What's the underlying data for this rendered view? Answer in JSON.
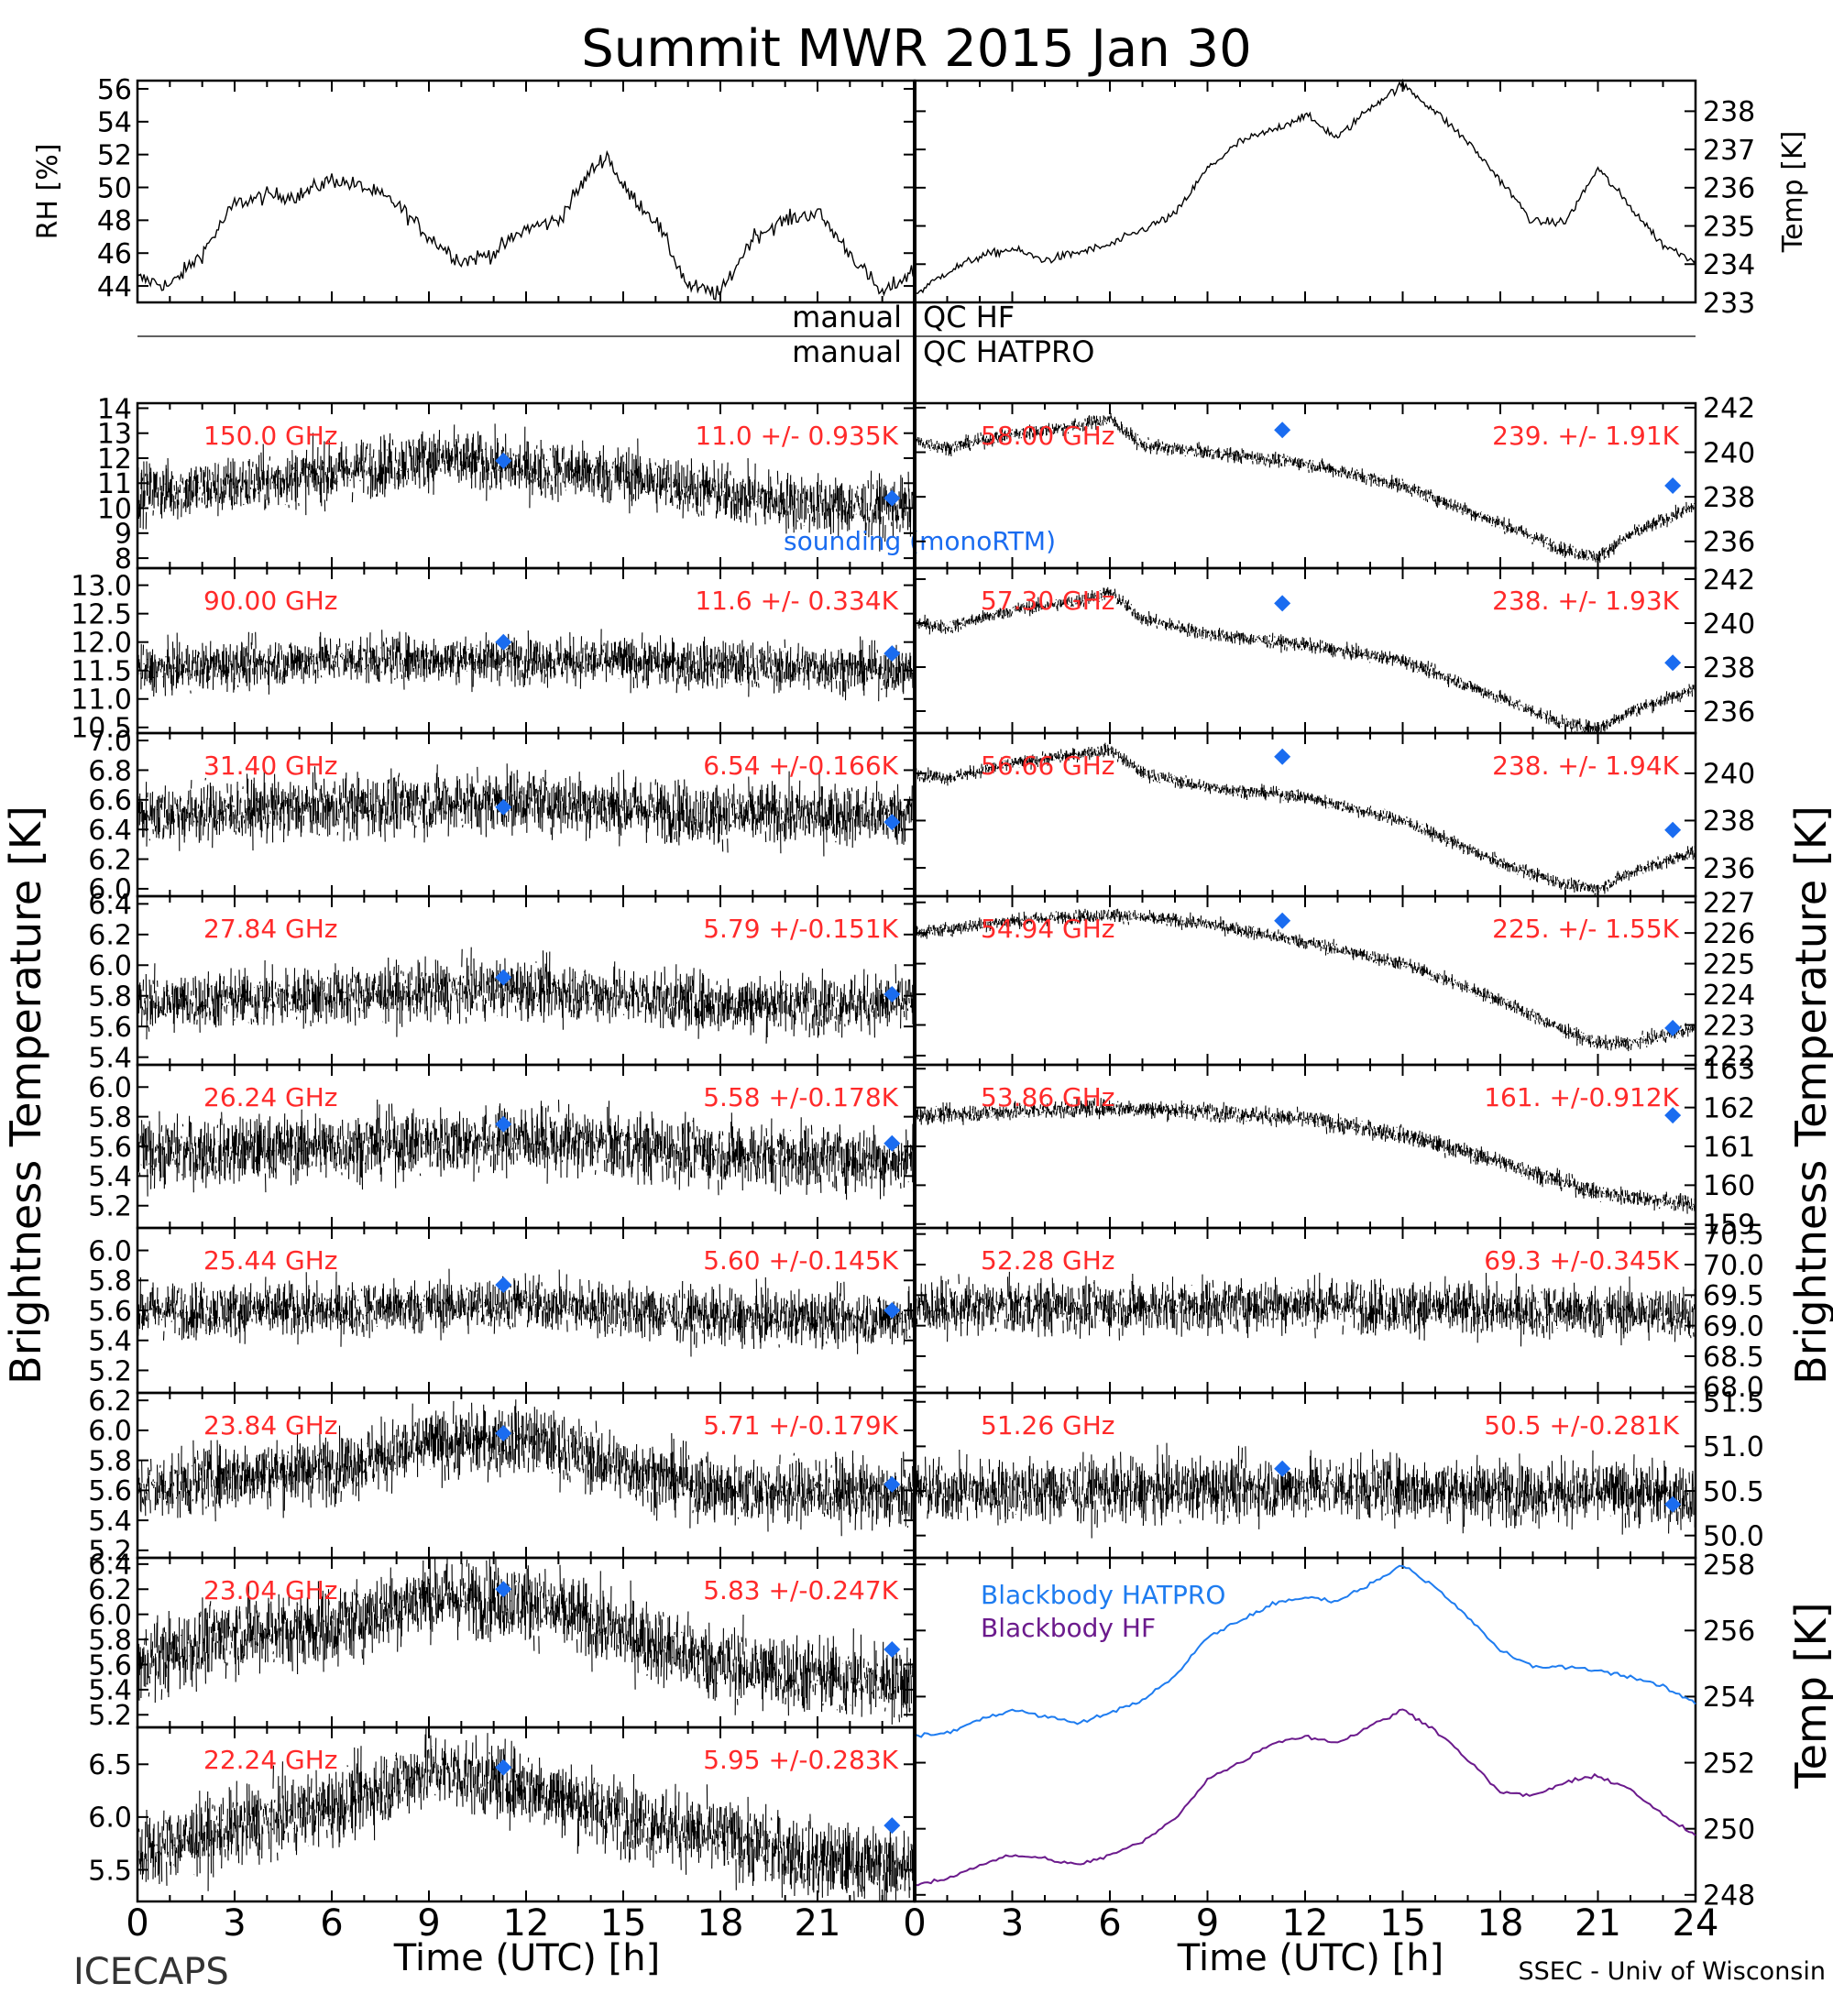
{
  "title": "Summit MWR 2015 Jan 30",
  "qc_labels": {
    "row1_left": "manual",
    "row1_right": "QC HF",
    "row2_left": "manual",
    "row2_right": "QC HATPRO"
  },
  "left_ylabel": "Brightness Temperature [K]",
  "right_ylabel": "Brightness Temperature [K]",
  "bottom_right_ylabel": "Temp [K]",
  "xlabel_left": "Time (UTC) [h]",
  "xlabel_right": "Time (UTC) [h]",
  "footer_left": "ICECAPS",
  "footer_right": "SSEC - Univ of Wisconsin",
  "sounding_label": "sounding (monoRTM)",
  "colors": {
    "trace": "#000000",
    "stats": "#ff2a2a",
    "sounding": "#1a6cf0",
    "blackbody_hatpro": "#1e7cf0",
    "blackbody_hf": "#6b1a8c"
  },
  "chart_data": [
    {
      "id": "rh",
      "type": "line",
      "xlim": [
        0,
        24
      ],
      "ylim": [
        43,
        56.5
      ],
      "ylabel": "RH [%]",
      "yticks": [
        44,
        46,
        48,
        50,
        52,
        54,
        56
      ],
      "x": [
        0,
        1,
        2,
        3,
        4,
        5,
        6,
        7,
        8,
        9,
        10,
        11,
        12,
        13,
        14,
        14.5,
        15,
        16,
        17,
        18,
        19,
        20,
        21,
        22,
        23,
        24
      ],
      "y": [
        44.5,
        44,
        46,
        49,
        49.5,
        49.5,
        50.5,
        50,
        49,
        47,
        45.5,
        46,
        47.5,
        48,
        51,
        52,
        50,
        48,
        44,
        43.5,
        47,
        48,
        48.5,
        46,
        43.5,
        45
      ]
    },
    {
      "id": "temp",
      "type": "line",
      "xlim": [
        0,
        24
      ],
      "ylim": [
        233,
        238.8
      ],
      "ylabel": "Temp [K]",
      "yticks": [
        233,
        234,
        235,
        236,
        237,
        238
      ],
      "x": [
        0,
        1,
        2,
        3,
        4,
        5,
        6,
        7,
        8,
        9,
        10,
        11,
        12,
        13,
        14,
        15,
        16,
        17,
        18,
        19,
        20,
        21,
        22,
        23,
        24
      ],
      "y": [
        233.2,
        233.8,
        234.2,
        234.4,
        234.1,
        234.3,
        234.5,
        234.9,
        235.3,
        236.5,
        237.2,
        237.5,
        237.9,
        237.3,
        238.1,
        238.7,
        238.0,
        237.2,
        236.2,
        235.1,
        235.1,
        236.5,
        235.5,
        234.5,
        234.1
      ]
    },
    {
      "id": "hf-150",
      "type": "scatter",
      "side": "left",
      "row": 0,
      "channel": "150.0 GHz",
      "stats": "11.0 +/- 0.935K",
      "ylim": [
        7.6,
        14.2
      ],
      "yticks": [
        8,
        9,
        10,
        11,
        12,
        13,
        14
      ],
      "ytick_labels": [
        "8",
        "9",
        "10",
        "11",
        "12",
        "13",
        "14"
      ],
      "trend": {
        "x": [
          0,
          3,
          6,
          9,
          12,
          15,
          18,
          21,
          24
        ],
        "y": [
          10.6,
          10.9,
          11.4,
          12.0,
          11.6,
          11.3,
          10.6,
          10.1,
          10.0
        ]
      },
      "noise": 0.935,
      "sounding": {
        "x": [
          11.3,
          23.3
        ],
        "y": [
          11.9,
          10.4
        ]
      }
    },
    {
      "id": "hf-90",
      "type": "scatter",
      "side": "left",
      "row": 1,
      "channel": "90.00 GHz",
      "stats": "11.6 +/- 0.334K",
      "ylim": [
        10.4,
        13.3
      ],
      "yticks": [
        10.5,
        11.0,
        11.5,
        12.0,
        12.5,
        13.0
      ],
      "ytick_labels": [
        "10.5",
        "11.0",
        "11.5",
        "12.0",
        "12.5",
        "13.0"
      ],
      "trend": {
        "x": [
          0,
          6,
          12,
          18,
          24
        ],
        "y": [
          11.5,
          11.7,
          11.7,
          11.6,
          11.5
        ]
      },
      "noise": 0.334,
      "sounding": {
        "x": [
          11.3,
          23.3
        ],
        "y": [
          12.0,
          11.8
        ]
      }
    },
    {
      "id": "hf-31",
      "type": "scatter",
      "side": "left",
      "row": 2,
      "channel": "31.40 GHz",
      "stats": "6.54 +/-0.166K",
      "ylim": [
        5.95,
        7.05
      ],
      "yticks": [
        6.0,
        6.2,
        6.4,
        6.6,
        6.8,
        7.0
      ],
      "ytick_labels": [
        "6.0",
        "6.2",
        "6.4",
        "6.6",
        "6.8",
        "7.0"
      ],
      "trend": {
        "x": [
          0,
          6,
          12,
          18,
          24
        ],
        "y": [
          6.5,
          6.55,
          6.6,
          6.5,
          6.5
        ]
      },
      "noise": 0.166,
      "sounding": {
        "x": [
          11.3,
          23.3
        ],
        "y": [
          6.55,
          6.45
        ]
      }
    },
    {
      "id": "hf-27",
      "type": "scatter",
      "side": "left",
      "row": 3,
      "channel": "27.84 GHz",
      "stats": "5.79 +/-0.151K",
      "ylim": [
        5.35,
        6.45
      ],
      "yticks": [
        5.4,
        5.6,
        5.8,
        6.0,
        6.2,
        6.4
      ],
      "ytick_labels": [
        "5.4",
        "5.6",
        "5.8",
        "6.0",
        "6.2",
        "6.4"
      ],
      "trend": {
        "x": [
          0,
          6,
          12,
          18,
          24
        ],
        "y": [
          5.75,
          5.8,
          5.85,
          5.75,
          5.75
        ]
      },
      "noise": 0.151,
      "sounding": {
        "x": [
          11.3,
          23.3
        ],
        "y": [
          5.92,
          5.81
        ]
      }
    },
    {
      "id": "hf-26",
      "type": "scatter",
      "side": "left",
      "row": 4,
      "channel": "26.24 GHz",
      "stats": "5.58 +/-0.178K",
      "ylim": [
        5.05,
        6.15
      ],
      "yticks": [
        5.2,
        5.4,
        5.6,
        5.8,
        6.0
      ],
      "ytick_labels": [
        "5.2",
        "5.4",
        "5.6",
        "5.8",
        "6.0"
      ],
      "trend": {
        "x": [
          0,
          6,
          12,
          18,
          24
        ],
        "y": [
          5.55,
          5.6,
          5.65,
          5.55,
          5.5
        ]
      },
      "noise": 0.178,
      "sounding": {
        "x": [
          11.3,
          23.3
        ],
        "y": [
          5.75,
          5.62
        ]
      }
    },
    {
      "id": "hf-25",
      "type": "scatter",
      "side": "left",
      "row": 5,
      "channel": "25.44 GHz",
      "stats": "5.60 +/-0.145K",
      "ylim": [
        5.05,
        6.15
      ],
      "yticks": [
        5.2,
        5.4,
        5.6,
        5.8,
        6.0
      ],
      "ytick_labels": [
        "5.2",
        "5.4",
        "5.6",
        "5.8",
        "6.0"
      ],
      "trend": {
        "x": [
          0,
          6,
          12,
          18,
          24
        ],
        "y": [
          5.6,
          5.6,
          5.65,
          5.55,
          5.55
        ]
      },
      "noise": 0.145,
      "sounding": {
        "x": [
          11.3,
          23.3
        ],
        "y": [
          5.77,
          5.6
        ]
      }
    },
    {
      "id": "hf-23-84",
      "type": "scatter",
      "side": "left",
      "row": 6,
      "channel": "23.84 GHz",
      "stats": "5.71 +/-0.179K",
      "ylim": [
        5.15,
        6.25
      ],
      "yticks": [
        5.2,
        5.4,
        5.6,
        5.8,
        6.0,
        6.2
      ],
      "ytick_labels": [
        "5.2",
        "5.4",
        "5.6",
        "5.8",
        "6.0",
        "6.2"
      ],
      "trend": {
        "x": [
          0,
          3,
          6,
          9,
          12,
          15,
          18,
          21,
          24
        ],
        "y": [
          5.6,
          5.7,
          5.75,
          5.9,
          5.95,
          5.75,
          5.6,
          5.6,
          5.55
        ]
      },
      "noise": 0.179,
      "sounding": {
        "x": [
          11.3,
          23.3
        ],
        "y": [
          5.98,
          5.64
        ]
      }
    },
    {
      "id": "hf-23-04",
      "type": "scatter",
      "side": "left",
      "row": 7,
      "channel": "23.04 GHz",
      "stats": "5.83 +/-0.247K",
      "ylim": [
        5.1,
        6.45
      ],
      "yticks": [
        5.2,
        5.4,
        5.6,
        5.8,
        6.0,
        6.2,
        6.4
      ],
      "ytick_labels": [
        "5.2",
        "5.4",
        "5.6",
        "5.8",
        "6.0",
        "6.2",
        "6.4"
      ],
      "trend": {
        "x": [
          0,
          3,
          6,
          9,
          12,
          15,
          18,
          21,
          24
        ],
        "y": [
          5.6,
          5.85,
          5.9,
          6.15,
          6.1,
          5.85,
          5.6,
          5.5,
          5.45
        ]
      },
      "noise": 0.247,
      "sounding": {
        "x": [
          11.3,
          23.3
        ],
        "y": [
          6.2,
          5.72
        ]
      }
    },
    {
      "id": "hf-22",
      "type": "scatter",
      "side": "left",
      "row": 8,
      "channel": "22.24 GHz",
      "stats": "5.95 +/-0.283K",
      "ylim": [
        5.2,
        6.85
      ],
      "yticks": [
        5.5,
        6.0,
        6.5
      ],
      "ytick_labels": [
        "5.5",
        "6.0",
        "6.5"
      ],
      "trend": {
        "x": [
          0,
          3,
          6,
          9,
          12,
          15,
          18,
          21,
          24
        ],
        "y": [
          5.65,
          5.9,
          6.1,
          6.45,
          6.3,
          6.0,
          5.8,
          5.6,
          5.5
        ]
      },
      "noise": 0.283,
      "sounding": {
        "x": [
          11.3,
          23.3
        ],
        "y": [
          6.47,
          5.92
        ]
      }
    },
    {
      "id": "hatpro-58",
      "type": "scatter",
      "side": "right",
      "row": 0,
      "channel": "58.00 GHz",
      "stats": "239. +/- 1.91K",
      "ylim": [
        234.8,
        242.2
      ],
      "yticks": [
        236,
        238,
        240,
        242
      ],
      "ytick_labels": [
        "236",
        "238",
        "240",
        "242"
      ],
      "trend": {
        "x": [
          0,
          1,
          3,
          5,
          6,
          7,
          9,
          12,
          15,
          18,
          20,
          21,
          22,
          24
        ],
        "y": [
          240.5,
          240.2,
          240.8,
          241.2,
          241.5,
          240.3,
          240.0,
          239.5,
          238.5,
          236.8,
          235.6,
          235.3,
          236.3,
          237.6
        ]
      },
      "noise": 0.25,
      "sounding": {
        "x": [
          11.3,
          23.3
        ],
        "y": [
          241.0,
          238.5
        ]
      }
    },
    {
      "id": "hatpro-57",
      "type": "scatter",
      "side": "right",
      "row": 1,
      "channel": "57.30 GHz",
      "stats": "238. +/- 1.93K",
      "ylim": [
        235,
        242.5
      ],
      "yticks": [
        236,
        238,
        240,
        242
      ],
      "ytick_labels": [
        "236",
        "238",
        "240",
        "242"
      ],
      "trend": {
        "x": [
          0,
          1,
          3,
          5,
          6,
          7,
          9,
          12,
          15,
          18,
          20,
          21,
          22,
          24
        ],
        "y": [
          240.0,
          239.8,
          240.6,
          241.0,
          241.4,
          240.2,
          239.5,
          239.0,
          238.3,
          236.6,
          235.4,
          235.2,
          236.0,
          237.0
        ]
      },
      "noise": 0.25,
      "sounding": {
        "x": [
          11.3,
          23.3
        ],
        "y": [
          240.9,
          238.2
        ]
      }
    },
    {
      "id": "hatpro-56",
      "type": "scatter",
      "side": "right",
      "row": 2,
      "channel": "56.66 GHz",
      "stats": "238. +/- 1.94K",
      "ylim": [
        234.8,
        241.7
      ],
      "yticks": [
        236,
        238,
        240
      ],
      "ytick_labels": [
        "236",
        "238",
        "240"
      ],
      "trend": {
        "x": [
          0,
          1,
          3,
          5,
          6,
          7,
          9,
          12,
          15,
          18,
          20,
          21,
          22,
          24
        ],
        "y": [
          240.0,
          239.8,
          240.4,
          240.8,
          241.0,
          240.0,
          239.4,
          239.0,
          238.0,
          236.2,
          235.3,
          235.1,
          235.8,
          236.7
        ]
      },
      "noise": 0.22,
      "sounding": {
        "x": [
          11.3,
          23.3
        ],
        "y": [
          240.7,
          237.6
        ]
      }
    },
    {
      "id": "hatpro-54",
      "type": "scatter",
      "side": "right",
      "row": 3,
      "channel": "54.94 GHz",
      "stats": "225. +/- 1.55K",
      "ylim": [
        221.7,
        227.2
      ],
      "yticks": [
        222,
        223,
        224,
        225,
        226,
        227
      ],
      "ytick_labels": [
        "222",
        "223",
        "224",
        "225",
        "226",
        "227"
      ],
      "trend": {
        "x": [
          0,
          3,
          6,
          9,
          12,
          15,
          18,
          20,
          21,
          22,
          24
        ],
        "y": [
          226.0,
          226.4,
          226.6,
          226.3,
          225.7,
          225.0,
          223.8,
          222.8,
          222.4,
          222.4,
          222.9
        ]
      },
      "noise": 0.18,
      "sounding": {
        "x": [
          11.3,
          23.3
        ],
        "y": [
          226.4,
          222.9
        ]
      }
    },
    {
      "id": "hatpro-53",
      "type": "scatter",
      "side": "right",
      "row": 4,
      "channel": "53.86 GHz",
      "stats": "161. +/-0.912K",
      "ylim": [
        158.9,
        163.1
      ],
      "yticks": [
        159,
        160,
        161,
        162,
        163
      ],
      "ytick_labels": [
        "159",
        "160",
        "161",
        "162",
        "163"
      ],
      "trend": {
        "x": [
          0,
          3,
          6,
          9,
          12,
          15,
          18,
          21,
          24
        ],
        "y": [
          161.8,
          161.9,
          162.0,
          161.9,
          161.7,
          161.3,
          160.6,
          159.8,
          159.5
        ]
      },
      "noise": 0.18,
      "sounding": {
        "x": [
          23.3
        ],
        "y": [
          161.8
        ]
      }
    },
    {
      "id": "hatpro-52",
      "type": "scatter",
      "side": "right",
      "row": 5,
      "channel": "52.28 GHz",
      "stats": "69.3 +/-0.345K",
      "ylim": [
        67.9,
        70.6
      ],
      "yticks": [
        68.0,
        68.5,
        69.0,
        69.5,
        70.0,
        70.5
      ],
      "ytick_labels": [
        "68.0",
        "68.5",
        "69.0",
        "69.5",
        "70.0",
        "70.5"
      ],
      "trend": {
        "x": [
          0,
          6,
          12,
          18,
          24
        ],
        "y": [
          69.3,
          69.3,
          69.35,
          69.25,
          69.2
        ]
      },
      "noise": 0.345,
      "sounding": {
        "x": [],
        "y": []
      }
    },
    {
      "id": "hatpro-51",
      "type": "scatter",
      "side": "right",
      "row": 6,
      "channel": "51.26 GHz",
      "stats": "50.5 +/-0.281K",
      "ylim": [
        49.75,
        51.6
      ],
      "yticks": [
        50.0,
        50.5,
        51.0,
        51.5
      ],
      "ytick_labels": [
        "50.0",
        "50.5",
        "51.0",
        "51.5"
      ],
      "trend": {
        "x": [
          0,
          6,
          12,
          18,
          24
        ],
        "y": [
          50.5,
          50.5,
          50.55,
          50.5,
          50.45
        ]
      },
      "noise": 0.281,
      "sounding": {
        "x": [
          11.3,
          23.3
        ],
        "y": [
          50.75,
          50.35
        ]
      }
    },
    {
      "id": "blackbody",
      "type": "line",
      "side": "right",
      "row": "7-8",
      "ylabel": "Temp [K]",
      "xlim": [
        0,
        24
      ],
      "ylim": [
        247.8,
        258.2
      ],
      "yticks": [
        248,
        250,
        252,
        254,
        256,
        258
      ],
      "ytick_labels": [
        "248",
        "250",
        "252",
        "254",
        "256",
        "258"
      ],
      "series": [
        {
          "name": "Blackbody HATPRO",
          "x": [
            0,
            1,
            2,
            3,
            4,
            5,
            6,
            7,
            8,
            9,
            10,
            11,
            12,
            13,
            14,
            15,
            16,
            17,
            18,
            19,
            20,
            21,
            22,
            23,
            24
          ],
          "y": [
            252.8,
            252.9,
            253.3,
            253.6,
            253.4,
            253.2,
            253.5,
            253.9,
            254.6,
            255.8,
            256.3,
            256.8,
            257.0,
            256.9,
            257.4,
            258.0,
            257.3,
            256.4,
            255.4,
            254.9,
            254.9,
            254.8,
            254.6,
            254.3,
            253.8
          ]
        },
        {
          "name": "Blackbody HF",
          "x": [
            0,
            1,
            2,
            3,
            4,
            5,
            6,
            7,
            8,
            9,
            10,
            11,
            12,
            13,
            14,
            15,
            16,
            17,
            18,
            19,
            20,
            21,
            22,
            23,
            24
          ],
          "y": [
            248.3,
            248.5,
            248.9,
            249.2,
            249.1,
            248.9,
            249.2,
            249.6,
            250.3,
            251.5,
            252.0,
            252.6,
            252.8,
            252.6,
            253.1,
            253.6,
            253.0,
            252.1,
            251.1,
            251.0,
            251.4,
            251.6,
            251.2,
            250.4,
            249.8
          ]
        }
      ]
    }
  ],
  "x_axis": {
    "xlim": [
      0,
      24
    ],
    "left_ticks": [
      0,
      3,
      6,
      9,
      12,
      15,
      18,
      21
    ],
    "left_tick_labels": [
      "0",
      "3",
      "6",
      "9",
      "12",
      "15",
      "18",
      "21"
    ],
    "right_ticks": [
      0,
      3,
      6,
      9,
      12,
      15,
      18,
      21,
      24
    ],
    "right_tick_labels": [
      "0",
      "3",
      "6",
      "9",
      "12",
      "15",
      "18",
      "21",
      "24"
    ]
  }
}
